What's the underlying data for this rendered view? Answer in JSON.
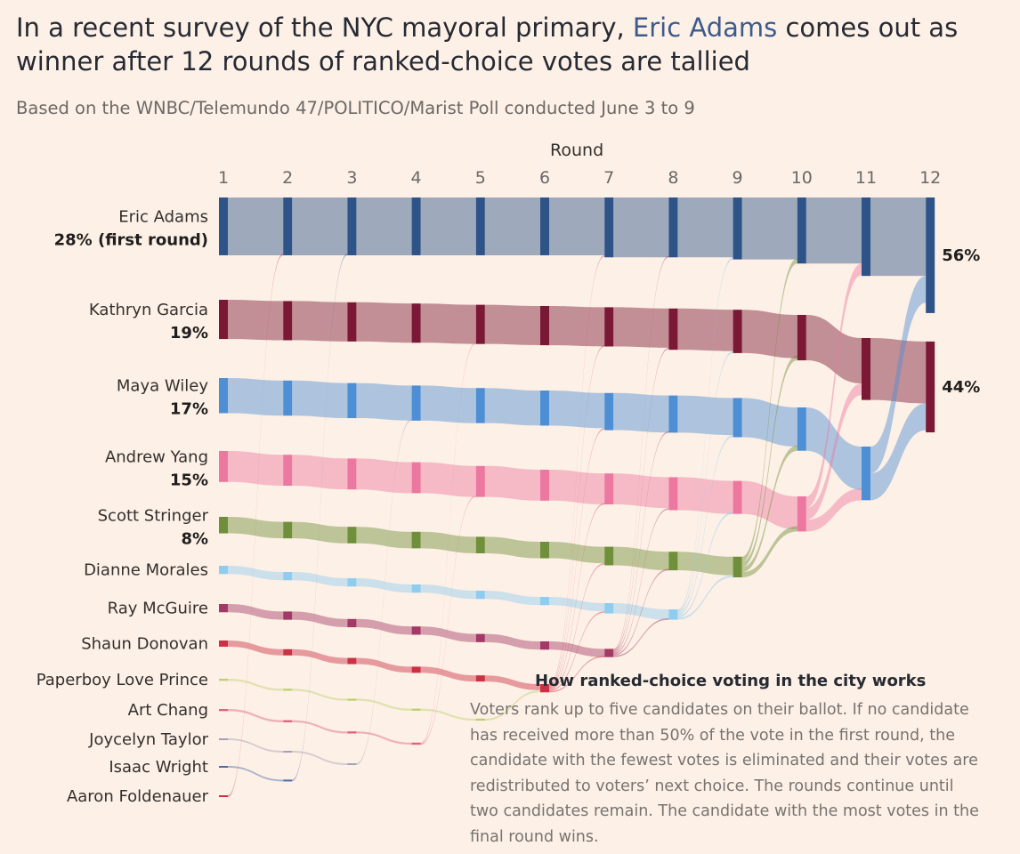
{
  "header": {
    "title_pre": "In a recent survey of the NYC mayoral primary, ",
    "title_highlight": "Eric Adams",
    "title_post": " comes out as winner after 12 rounds of ranked-choice votes are tallied",
    "subtitle": "Based on the WNBC/Telemundo 47/POLITICO/Marist Poll conducted June 3 to 9",
    "highlight_color": "#3d5a8c"
  },
  "explainer": {
    "title": "How ranked-choice voting in the city works",
    "body": "Voters rank up to five candidates on their ballot. If no candidate has received more than 50% of the vote in the first round, the candidate with the fewest votes is eliminated and their votes are redistributed to voters’ next choice. The rounds continue until two candidates remain. The candidate with the most votes in the final round wins."
  },
  "chart_data": {
    "type": "sankey",
    "x_axis_title": "Round",
    "rounds": [
      1,
      2,
      3,
      4,
      5,
      6,
      7,
      8,
      9,
      10,
      11,
      12
    ],
    "final_labels": {
      "Eric Adams": "56%",
      "Kathryn Garcia": "44%"
    },
    "candidates": [
      {
        "name": "Eric Adams",
        "first_round_label": "28% (first round)",
        "color": "#2d5389",
        "shares": [
          28,
          28,
          28,
          28,
          28,
          28,
          29,
          29,
          30,
          32,
          38,
          56
        ]
      },
      {
        "name": "Kathryn Garcia",
        "first_round_label": "19%",
        "color": "#7a1836",
        "shares": [
          19,
          19,
          19,
          19,
          19,
          19,
          19,
          20,
          21,
          22,
          30,
          44
        ]
      },
      {
        "name": "Maya Wiley",
        "first_round_label": "17%",
        "color": "#4d8ed4",
        "shares": [
          17,
          17,
          17,
          17,
          17,
          17,
          18,
          18,
          19,
          21,
          26,
          0
        ]
      },
      {
        "name": "Andrew Yang",
        "first_round_label": "15%",
        "color": "#ec78a0",
        "shares": [
          15,
          15,
          15,
          15,
          15,
          15,
          15,
          16,
          16,
          17,
          0,
          0
        ]
      },
      {
        "name": "Scott Stringer",
        "first_round_label": "8%",
        "color": "#6f8f3a",
        "shares": [
          8,
          8,
          8,
          8,
          8,
          8,
          9,
          9,
          10,
          0,
          0,
          0
        ]
      },
      {
        "name": "Dianne Morales",
        "first_round_label": "",
        "color": "#8fcdf0",
        "shares": [
          4,
          4,
          4,
          4,
          4,
          4,
          5,
          5,
          0,
          0,
          0,
          0
        ]
      },
      {
        "name": "Ray McGuire",
        "first_round_label": "",
        "color": "#a33a66",
        "shares": [
          4,
          4,
          4,
          4,
          4,
          4,
          4,
          0,
          0,
          0,
          0,
          0
        ]
      },
      {
        "name": "Shaun Donovan",
        "first_round_label": "",
        "color": "#cc3044",
        "shares": [
          3,
          3,
          3,
          3,
          3,
          4,
          0,
          0,
          0,
          0,
          0,
          0
        ]
      },
      {
        "name": "Paperboy Love Prince",
        "first_round_label": "",
        "color": "#bdd06c",
        "shares": [
          1,
          1,
          1,
          1,
          1,
          0,
          0,
          0,
          0,
          0,
          0,
          0
        ]
      },
      {
        "name": "Art Chang",
        "first_round_label": "",
        "color": "#e0607e",
        "shares": [
          1,
          1,
          1,
          1,
          0,
          0,
          0,
          0,
          0,
          0,
          0,
          0
        ]
      },
      {
        "name": "Joycelyn Taylor",
        "first_round_label": "",
        "color": "#a4a0b8",
        "shares": [
          0.3,
          0.3,
          0.3,
          0,
          0,
          0,
          0,
          0,
          0,
          0,
          0,
          0
        ]
      },
      {
        "name": "Isaac Wright",
        "first_round_label": "",
        "color": "#4a6aa8",
        "shares": [
          0.3,
          0.3,
          0,
          0,
          0,
          0,
          0,
          0,
          0,
          0,
          0,
          0
        ]
      },
      {
        "name": "Aaron Foldenauer",
        "first_round_label": "",
        "color": "#cc3044",
        "shares": [
          0.3,
          0,
          0,
          0,
          0,
          0,
          0,
          0,
          0,
          0,
          0,
          0
        ]
      }
    ],
    "transfers": [
      {
        "round": 1,
        "from": "Aaron Foldenauer",
        "to": [
          "Eric Adams"
        ]
      },
      {
        "round": 2,
        "from": "Isaac Wright",
        "to": [
          "Eric Adams"
        ]
      },
      {
        "round": 3,
        "from": "Joycelyn Taylor",
        "to": [
          "Maya Wiley"
        ]
      },
      {
        "round": 4,
        "from": "Art Chang",
        "to": [
          "Kathryn Garcia",
          "Andrew Yang"
        ]
      },
      {
        "round": 5,
        "from": "Paperboy Love Prince",
        "to": [
          "Shaun Donovan"
        ]
      },
      {
        "round": 6,
        "from": "Shaun Donovan",
        "to": [
          "Eric Adams",
          "Kathryn Garcia",
          "Maya Wiley",
          "Andrew Yang",
          "Scott Stringer",
          "Dianne Morales",
          "Ray McGuire"
        ]
      },
      {
        "round": 7,
        "from": "Ray McGuire",
        "to": [
          "Eric Adams",
          "Kathryn Garcia",
          "Maya Wiley",
          "Andrew Yang",
          "Scott Stringer",
          "Dianne Morales"
        ]
      },
      {
        "round": 8,
        "from": "Dianne Morales",
        "to": [
          "Eric Adams",
          "Kathryn Garcia",
          "Maya Wiley",
          "Andrew Yang",
          "Scott Stringer"
        ]
      },
      {
        "round": 9,
        "from": "Scott Stringer",
        "to": [
          "Eric Adams",
          "Kathryn Garcia",
          "Maya Wiley",
          "Andrew Yang"
        ]
      },
      {
        "round": 10,
        "from": "Andrew Yang",
        "to": [
          "Eric Adams",
          "Kathryn Garcia",
          "Maya Wiley"
        ]
      },
      {
        "round": 11,
        "from": "Maya Wiley",
        "to": [
          "Eric Adams",
          "Kathryn Garcia"
        ]
      }
    ]
  }
}
